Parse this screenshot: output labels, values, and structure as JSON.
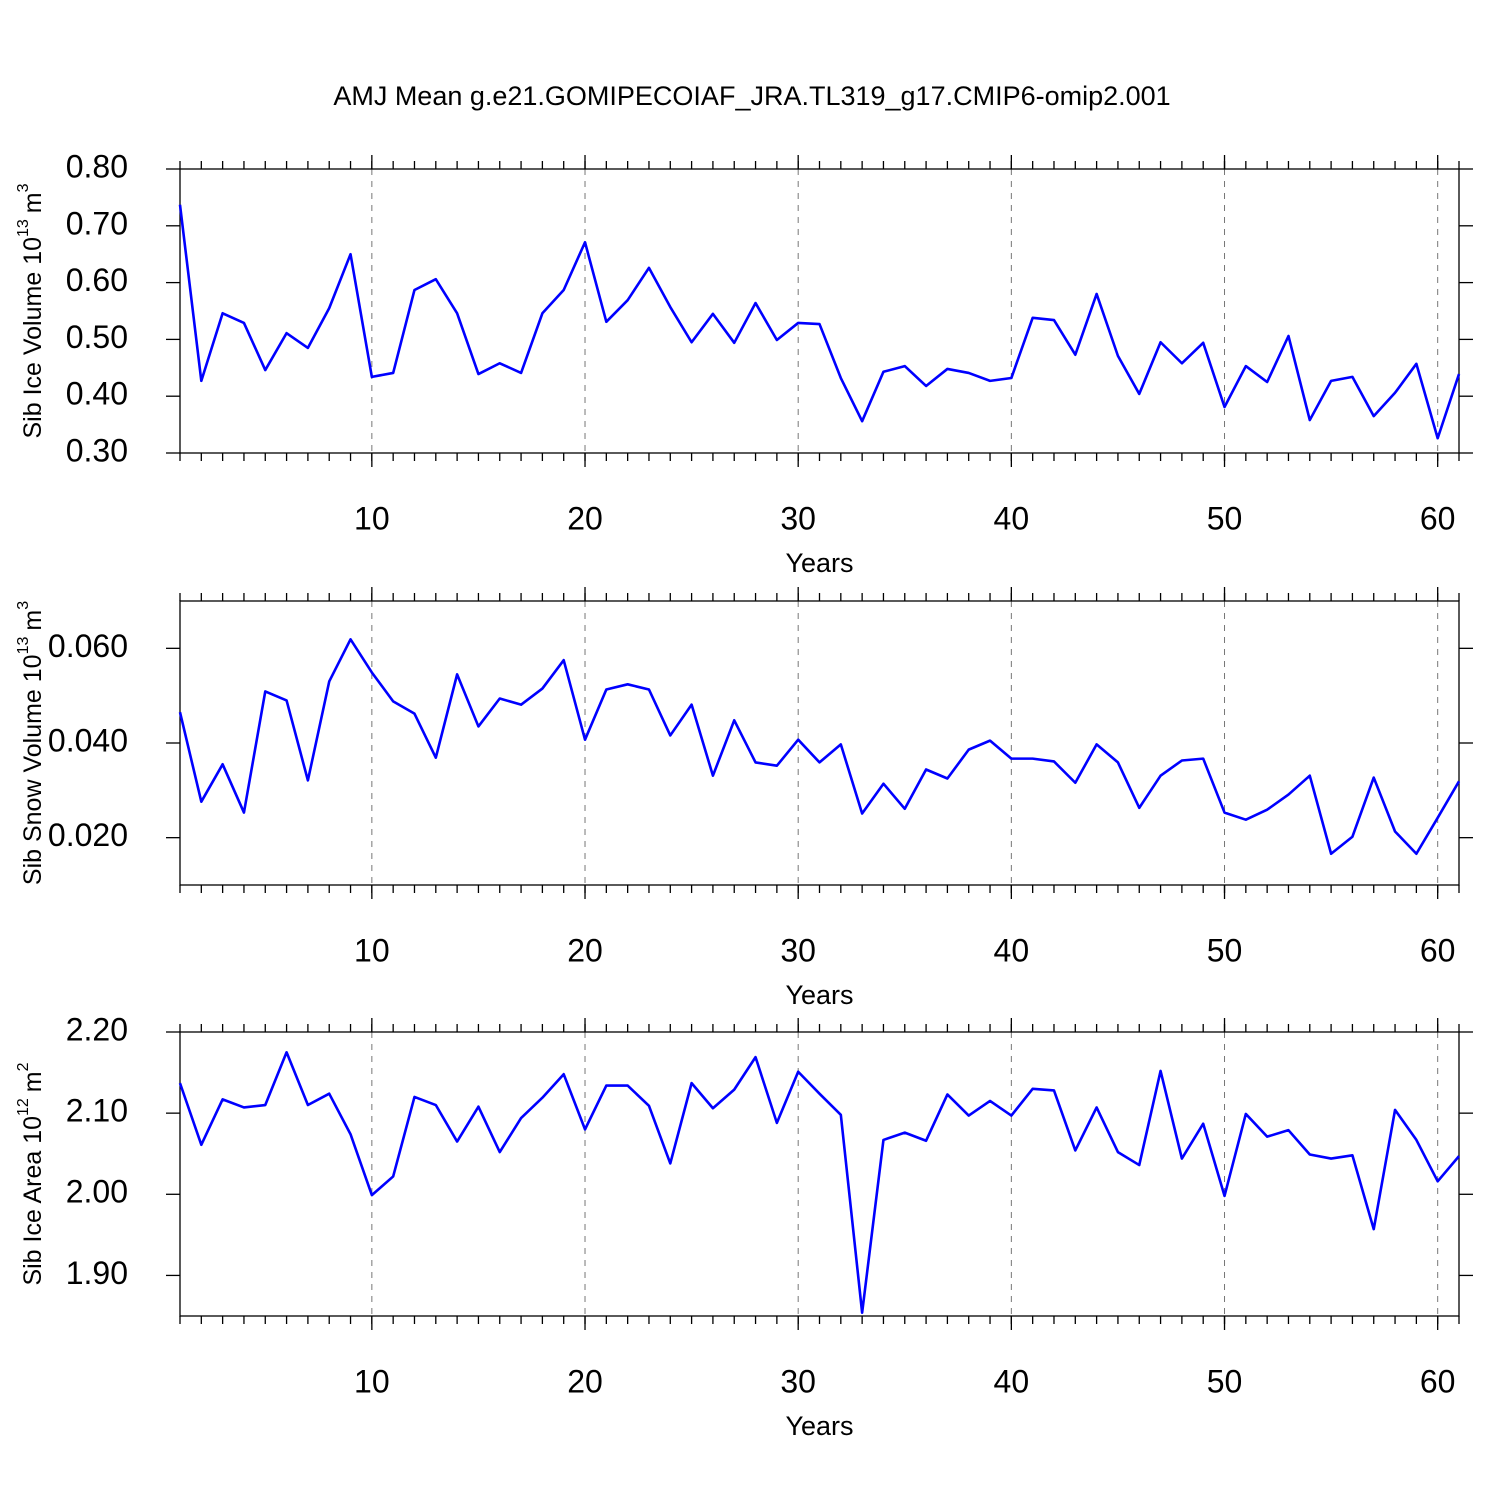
{
  "title": "AMJ Mean g.e21.GOMIPECOIAF_JRA.TL319_g17.CMIP6-omip2.001",
  "chart_data": [
    {
      "type": "line",
      "ylabel": [
        "Sib Ice Volume 10",
        "13",
        "m",
        "3"
      ],
      "xlabel": "Years",
      "color": "#0000ff",
      "grid": true,
      "x": [
        1,
        2,
        3,
        4,
        5,
        6,
        7,
        8,
        9,
        10,
        11,
        12,
        13,
        14,
        15,
        16,
        17,
        18,
        19,
        20,
        21,
        22,
        23,
        24,
        25,
        26,
        27,
        28,
        29,
        30,
        31,
        32,
        33,
        34,
        35,
        36,
        37,
        38,
        39,
        40,
        41,
        42,
        43,
        44,
        45,
        46,
        47,
        48,
        49,
        50,
        51,
        52,
        53,
        54,
        55,
        56,
        57,
        58,
        59,
        60,
        61
      ],
      "values": [
        0.737,
        0.427,
        0.546,
        0.529,
        0.446,
        0.511,
        0.485,
        0.555,
        0.65,
        0.434,
        0.441,
        0.587,
        0.606,
        0.546,
        0.439,
        0.458,
        0.441,
        0.546,
        0.587,
        0.671,
        0.531,
        0.569,
        0.626,
        0.557,
        0.495,
        0.545,
        0.494,
        0.564,
        0.499,
        0.529,
        0.527,
        0.432,
        0.356,
        0.443,
        0.453,
        0.418,
        0.448,
        0.441,
        0.427,
        0.432,
        0.538,
        0.534,
        0.473,
        0.58,
        0.471,
        0.404,
        0.495,
        0.458,
        0.494,
        0.381,
        0.453,
        0.425,
        0.506,
        0.358,
        0.427,
        0.434,
        0.365,
        0.406,
        0.457,
        0.326,
        0.439
      ],
      "xlim": [
        1,
        61
      ],
      "xticks": [
        10,
        20,
        30,
        40,
        50,
        60
      ],
      "ylim": [
        0.3,
        0.8
      ],
      "yticks": [
        {
          "value": 0.3,
          "label": "0.30"
        },
        {
          "value": 0.4,
          "label": "0.40"
        },
        {
          "value": 0.5,
          "label": "0.50"
        },
        {
          "value": 0.6,
          "label": "0.60"
        },
        {
          "value": 0.7,
          "label": "0.70"
        },
        {
          "value": 0.8,
          "label": "0.80"
        }
      ]
    },
    {
      "type": "line",
      "ylabel": [
        "Sib Snow Volume 10",
        "13",
        "m",
        "3"
      ],
      "xlabel": "Years",
      "color": "#0000ff",
      "grid": true,
      "x": [
        1,
        2,
        3,
        4,
        5,
        6,
        7,
        8,
        9,
        10,
        11,
        12,
        13,
        14,
        15,
        16,
        17,
        18,
        19,
        20,
        21,
        22,
        23,
        24,
        25,
        26,
        27,
        28,
        29,
        30,
        31,
        32,
        33,
        34,
        35,
        36,
        37,
        38,
        39,
        40,
        41,
        42,
        43,
        44,
        45,
        46,
        47,
        48,
        49,
        50,
        51,
        52,
        53,
        54,
        55,
        56,
        57,
        58,
        59,
        60,
        61
      ],
      "values": [
        0.0465,
        0.0276,
        0.0355,
        0.0253,
        0.0509,
        0.049,
        0.0321,
        0.053,
        0.0619,
        0.0549,
        0.0488,
        0.0462,
        0.0369,
        0.0545,
        0.0435,
        0.0494,
        0.0481,
        0.0515,
        0.0575,
        0.0407,
        0.0513,
        0.0524,
        0.0513,
        0.0416,
        0.0481,
        0.0331,
        0.0448,
        0.0359,
        0.0352,
        0.0407,
        0.0359,
        0.0397,
        0.0251,
        0.0314,
        0.0261,
        0.0344,
        0.0325,
        0.0386,
        0.0405,
        0.0367,
        0.0367,
        0.0361,
        0.0316,
        0.0397,
        0.0359,
        0.0263,
        0.0331,
        0.0363,
        0.0367,
        0.0253,
        0.0238,
        0.0259,
        0.0291,
        0.0331,
        0.0166,
        0.0202,
        0.0327,
        0.0213,
        0.0166,
        0.0242,
        0.0319
      ],
      "xlim": [
        1,
        61
      ],
      "xticks": [
        10,
        20,
        30,
        40,
        50,
        60
      ],
      "ylim": [
        0.01,
        0.07
      ],
      "yticks": [
        {
          "value": 0.02,
          "label": "0.020"
        },
        {
          "value": 0.04,
          "label": "0.040"
        },
        {
          "value": 0.06,
          "label": "0.060"
        }
      ]
    },
    {
      "type": "line",
      "ylabel": [
        "Sib Ice Area 10",
        "12",
        "m",
        "2"
      ],
      "xlabel": "Years",
      "color": "#0000ff",
      "grid": true,
      "x": [
        1,
        2,
        3,
        4,
        5,
        6,
        7,
        8,
        9,
        10,
        11,
        12,
        13,
        14,
        15,
        16,
        17,
        18,
        19,
        20,
        21,
        22,
        23,
        24,
        25,
        26,
        27,
        28,
        29,
        30,
        31,
        32,
        33,
        34,
        35,
        36,
        37,
        38,
        39,
        40,
        41,
        42,
        43,
        44,
        45,
        46,
        47,
        48,
        49,
        50,
        51,
        52,
        53,
        54,
        55,
        56,
        57,
        58,
        59,
        60,
        61
      ],
      "values": [
        2.137,
        2.061,
        2.117,
        2.107,
        2.11,
        2.175,
        2.11,
        2.124,
        2.074,
        1.999,
        2.022,
        2.12,
        2.11,
        2.065,
        2.108,
        2.052,
        2.094,
        2.119,
        2.148,
        2.08,
        2.134,
        2.134,
        2.109,
        2.038,
        2.137,
        2.106,
        2.129,
        2.169,
        2.088,
        2.151,
        2.124,
        2.098,
        1.854,
        2.067,
        2.076,
        2.066,
        2.123,
        2.097,
        2.115,
        2.097,
        2.13,
        2.128,
        2.054,
        2.107,
        2.052,
        2.036,
        2.152,
        2.044,
        2.087,
        1.998,
        2.099,
        2.071,
        2.079,
        2.049,
        2.044,
        2.048,
        1.957,
        2.104,
        2.067,
        2.016,
        2.047
      ],
      "xlim": [
        1,
        61
      ],
      "xticks": [
        10,
        20,
        30,
        40,
        50,
        60
      ],
      "ylim": [
        1.85,
        2.2
      ],
      "yticks": [
        {
          "value": 1.9,
          "label": "1.90"
        },
        {
          "value": 2.0,
          "label": "2.00"
        },
        {
          "value": 2.1,
          "label": "2.10"
        },
        {
          "value": 2.2,
          "label": "2.20"
        }
      ]
    }
  ]
}
